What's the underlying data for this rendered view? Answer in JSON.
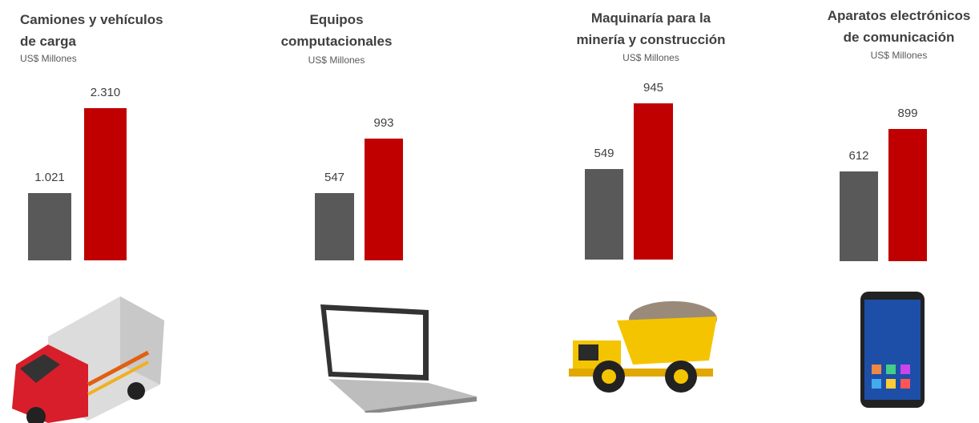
{
  "chart_data": [
    {
      "type": "bar",
      "title": "Camiones y vehículos\nde carga",
      "subtitle": "US$ Millones",
      "categories": [
        null,
        null
      ],
      "values": [
        1021,
        2310
      ],
      "value_labels": [
        "1.021",
        "2.310"
      ],
      "colors": [
        "#595959",
        "#c00000"
      ]
    },
    {
      "type": "bar",
      "title": "Equipos\ncomputacionales",
      "subtitle": "US$ Millones",
      "categories": [
        null,
        null
      ],
      "values": [
        547,
        993
      ],
      "colors": [
        "#595959",
        "#c00000"
      ]
    },
    {
      "type": "bar",
      "title": "Maquinaría para la\nminería y construcción",
      "subtitle": "US$ Millones",
      "categories": [
        null,
        null
      ],
      "values": [
        549,
        945
      ],
      "colors": [
        "#595959",
        "#c00000"
      ]
    },
    {
      "type": "bar",
      "title": "Aparatos electrónicos\nde comunicación",
      "subtitle": "US$ Millones",
      "categories": [
        null,
        null
      ],
      "values": [
        612,
        899
      ],
      "colors": [
        "#595959",
        "#c00000"
      ]
    }
  ]
}
